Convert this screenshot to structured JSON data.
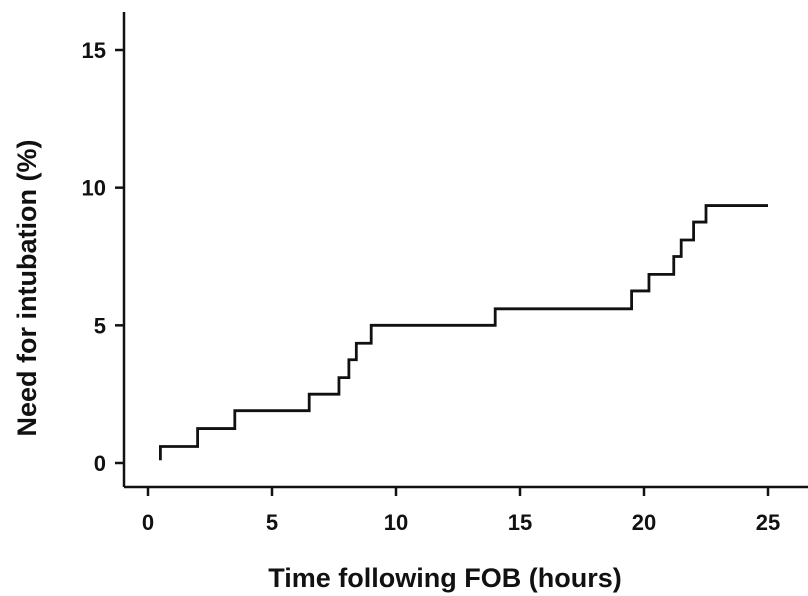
{
  "chart_data": {
    "type": "line",
    "line_style": "step",
    "title": "",
    "xlabel": "Time following FOB (hours)",
    "ylabel": "Need for intubation (%)",
    "xlim": [
      0,
      26
    ],
    "ylim": [
      -0.8,
      16
    ],
    "x_ticks": [
      0,
      5,
      10,
      15,
      20,
      25
    ],
    "y_ticks": [
      0,
      5,
      10,
      15
    ],
    "grid": false,
    "legend": "none",
    "color": "#111111",
    "series": [
      {
        "x": [
          0.5,
          2.0,
          3.5,
          6.5,
          7.7,
          8.1,
          8.4,
          9.0,
          14.0,
          19.5,
          20.2,
          21.2,
          21.5,
          22.0,
          22.5,
          25.0
        ],
        "y": [
          0.6,
          1.25,
          1.9,
          2.5,
          3.1,
          3.75,
          4.35,
          5.0,
          5.6,
          6.25,
          6.85,
          7.5,
          8.1,
          8.75,
          9.35,
          9.35
        ]
      }
    ]
  }
}
